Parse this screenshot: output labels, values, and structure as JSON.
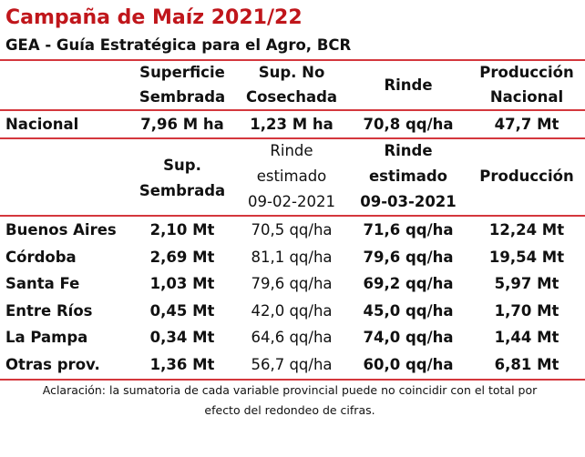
{
  "header": {
    "title": "Campaña de Maíz 2021/22",
    "subtitle": "GEA - Guía Estratégica para el Agro, BCR"
  },
  "national": {
    "columns": [
      [
        "Superficie",
        "Sembrada"
      ],
      [
        "Sup. No",
        "Cosechada"
      ],
      [
        "Rinde"
      ],
      [
        "Producción",
        "Nacional"
      ]
    ],
    "row": [
      "Nacional",
      "7,96 M ha",
      "1,23 M ha",
      "70,8 qq/ha",
      "47,7 Mt"
    ]
  },
  "provinces": {
    "columns": [
      [
        "Sup.",
        "Sembrada"
      ],
      [
        "Rinde",
        "estimado",
        "09-02-2021"
      ],
      [
        "Rinde",
        "estimado",
        "09-03-2021"
      ],
      [
        "Producción"
      ]
    ],
    "rows": [
      [
        "Buenos Aires",
        "2,10 Mt",
        "70,5 qq/ha",
        "71,6 qq/ha",
        "12,24 Mt"
      ],
      [
        "Córdoba",
        "2,69 Mt",
        "81,1 qq/ha",
        "79,6 qq/ha",
        "19,54 Mt"
      ],
      [
        "Santa Fe",
        "1,03 Mt",
        "79,6 qq/ha",
        "69,2 qq/ha",
        "5,97 Mt"
      ],
      [
        "Entre Ríos",
        "0,45 Mt",
        "42,0 qq/ha",
        "45,0 qq/ha",
        "1,70 Mt"
      ],
      [
        "La Pampa",
        "0,34 Mt",
        "64,6 qq/ha",
        "74,0 qq/ha",
        "1,44 Mt"
      ],
      [
        "Otras prov.",
        "1,36 Mt",
        "56,7 qq/ha",
        "60,0 qq/ha",
        "6,81 Mt"
      ]
    ]
  },
  "footnote": [
    "Aclaración: la sumatoria de cada variable provincial puede no coincidir con el total por",
    "efecto del redondeo de cifras."
  ]
}
